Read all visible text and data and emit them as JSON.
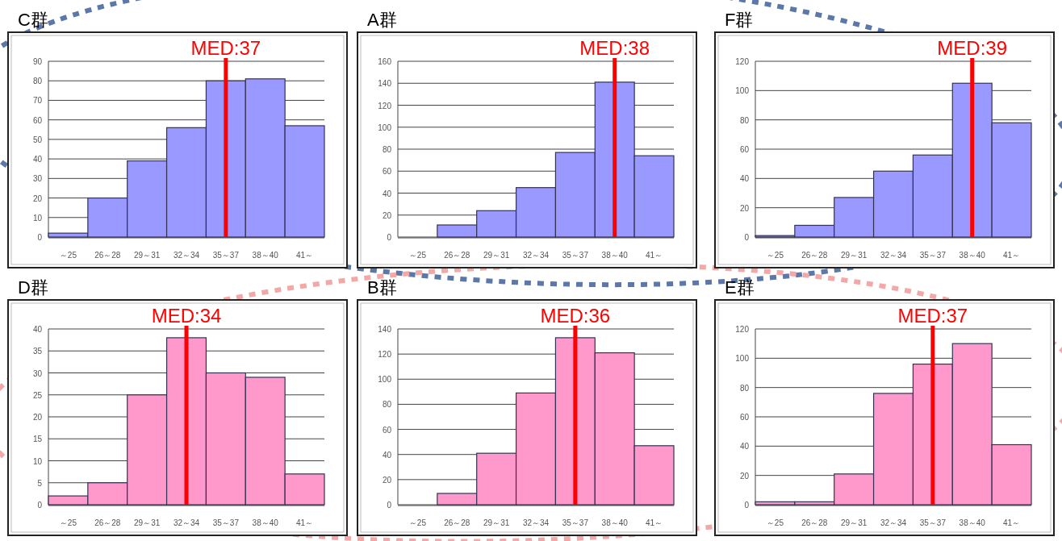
{
  "chart_data": [
    {
      "type": "bar",
      "title": "C群",
      "categories": [
        "～25",
        "26～28",
        "29～31",
        "32～34",
        "35～37",
        "38～40",
        "41～"
      ],
      "values": [
        2,
        20,
        39,
        56,
        80,
        81,
        57
      ],
      "color": "#9999ff",
      "ylim": [
        0,
        90
      ],
      "yticks": [
        0,
        10,
        20,
        30,
        40,
        50,
        60,
        70,
        80,
        90
      ],
      "grid": "y",
      "annotations": [
        {
          "text": "MED:37",
          "x": "35～37"
        }
      ]
    },
    {
      "type": "bar",
      "title": "A群",
      "categories": [
        "～25",
        "26～28",
        "29～31",
        "32～34",
        "35～37",
        "38～40",
        "41～"
      ],
      "values": [
        0,
        11,
        24,
        45,
        77,
        141,
        74
      ],
      "color": "#9999ff",
      "ylim": [
        0,
        160
      ],
      "yticks": [
        0,
        20,
        40,
        60,
        80,
        100,
        120,
        140,
        160
      ],
      "grid": "y",
      "annotations": [
        {
          "text": "MED:38",
          "x": "38～40"
        }
      ]
    },
    {
      "type": "bar",
      "title": "F群",
      "categories": [
        "～25",
        "26～28",
        "29～31",
        "32～34",
        "35～37",
        "38～40",
        "41～"
      ],
      "values": [
        1,
        8,
        27,
        45,
        56,
        105,
        78
      ],
      "color": "#9999ff",
      "ylim": [
        0,
        120
      ],
      "yticks": [
        0,
        20,
        40,
        60,
        80,
        100,
        120
      ],
      "grid": "y",
      "annotations": [
        {
          "text": "MED:39",
          "x": "38～40"
        }
      ]
    },
    {
      "type": "bar",
      "title": "D群",
      "categories": [
        "～25",
        "26～28",
        "29～31",
        "32～34",
        "35～37",
        "38～40",
        "41～"
      ],
      "values": [
        2,
        5,
        25,
        38,
        30,
        29,
        7
      ],
      "color": "#ff99cc",
      "ylim": [
        0,
        40
      ],
      "yticks": [
        0,
        5,
        10,
        15,
        20,
        25,
        30,
        35,
        40
      ],
      "grid": "y",
      "annotations": [
        {
          "text": "MED:34",
          "x": "32～34"
        }
      ]
    },
    {
      "type": "bar",
      "title": "B群",
      "categories": [
        "～25",
        "26～28",
        "29～31",
        "32～34",
        "35～37",
        "38～40",
        "41～"
      ],
      "values": [
        0,
        9,
        41,
        89,
        133,
        121,
        47
      ],
      "color": "#ff99cc",
      "ylim": [
        0,
        140
      ],
      "yticks": [
        0,
        20,
        40,
        60,
        80,
        100,
        120,
        140
      ],
      "grid": "y",
      "annotations": [
        {
          "text": "MED:36",
          "x": "35～37"
        }
      ]
    },
    {
      "type": "bar",
      "title": "E群",
      "categories": [
        "～25",
        "26～28",
        "29～31",
        "32～34",
        "35～37",
        "38～40",
        "41～"
      ],
      "values": [
        2,
        2,
        21,
        76,
        96,
        110,
        41
      ],
      "color": "#ff99cc",
      "ylim": [
        0,
        120
      ],
      "yticks": [
        0,
        20,
        40,
        60,
        80,
        100,
        120
      ],
      "grid": "y",
      "annotations": [
        {
          "text": "MED:37",
          "x": "35～37"
        }
      ]
    }
  ]
}
